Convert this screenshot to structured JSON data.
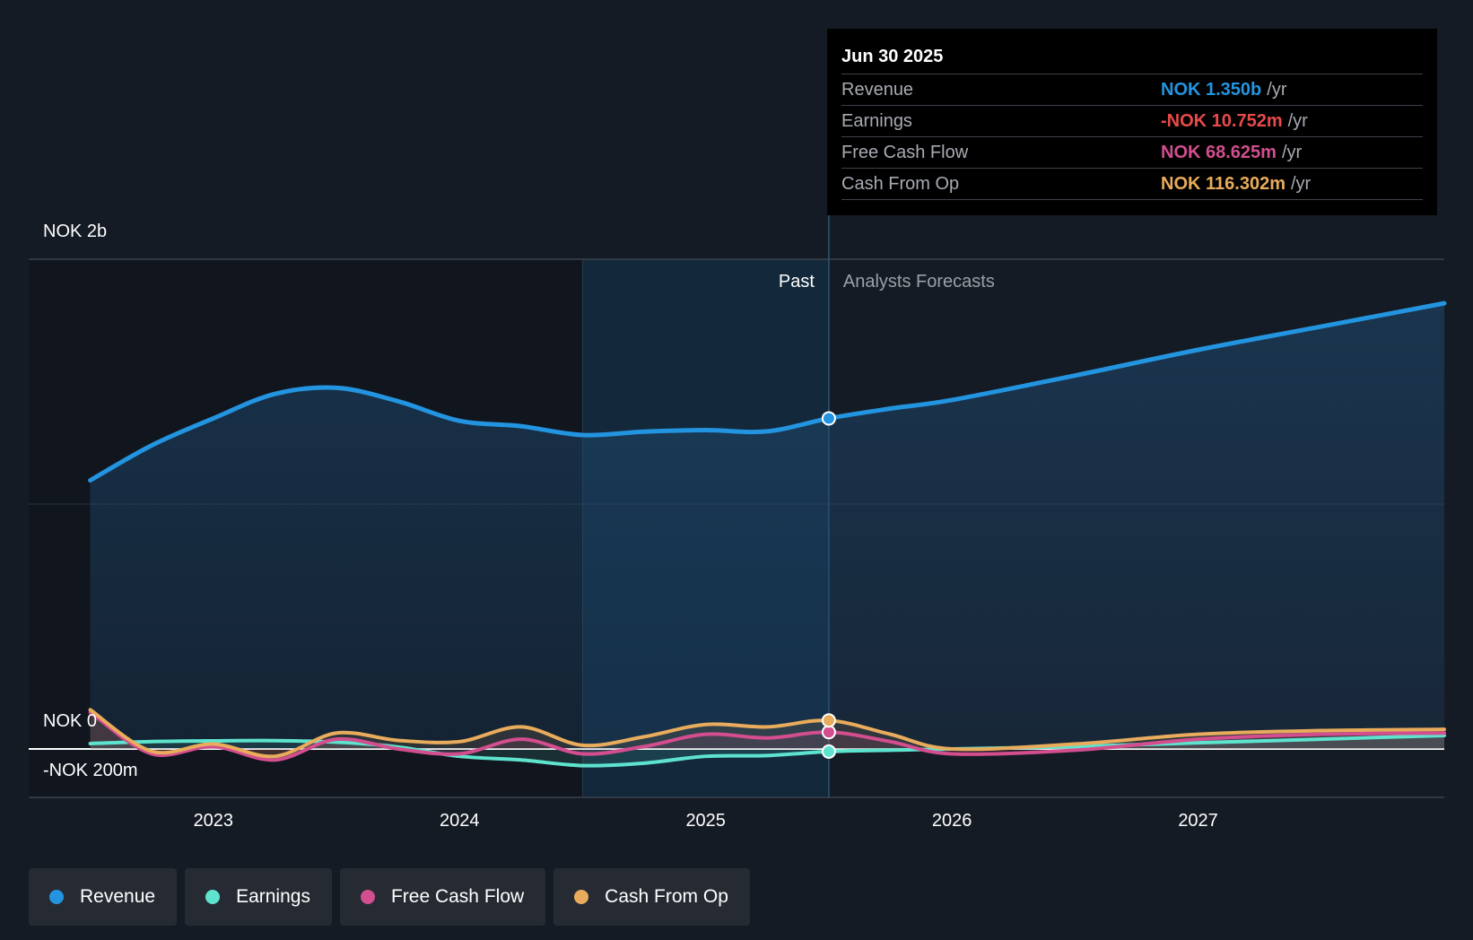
{
  "chart_data": {
    "type": "line",
    "title": "",
    "currency": "NOK",
    "y_unit": "million NOK",
    "ylim": [
      -200,
      2000
    ],
    "y_labels": [
      {
        "value": 2000,
        "text": "NOK 2b"
      },
      {
        "value": 0,
        "text": "NOK 0"
      },
      {
        "value": -200,
        "text": "-NOK 200m"
      }
    ],
    "x_ticks": [
      {
        "value": 2023,
        "text": "2023"
      },
      {
        "value": 2024,
        "text": "2024"
      },
      {
        "value": 2025,
        "text": "2025"
      },
      {
        "value": 2026,
        "text": "2026"
      },
      {
        "value": 2027,
        "text": "2027"
      }
    ],
    "xlim": [
      2022.25,
      2028.0
    ],
    "past_label": "Past",
    "forecast_label": "Analysts Forecasts",
    "divider_x": 2025.5,
    "shaded_start_x": 2024.5,
    "series": [
      {
        "name": "Revenue",
        "color": "#2394e0",
        "points": [
          [
            2022.5,
            1097
          ],
          [
            2022.75,
            1240
          ],
          [
            2023.0,
            1350
          ],
          [
            2023.25,
            1450
          ],
          [
            2023.5,
            1475
          ],
          [
            2023.75,
            1420
          ],
          [
            2024.0,
            1340
          ],
          [
            2024.25,
            1318
          ],
          [
            2024.5,
            1282
          ],
          [
            2024.75,
            1296
          ],
          [
            2025.0,
            1302
          ],
          [
            2025.25,
            1297
          ],
          [
            2025.5,
            1350
          ],
          [
            2025.75,
            1390
          ],
          [
            2026.0,
            1425
          ],
          [
            2026.5,
            1525
          ],
          [
            2027.0,
            1630
          ],
          [
            2027.5,
            1725
          ],
          [
            2028.0,
            1820
          ]
        ]
      },
      {
        "name": "Earnings",
        "color": "#5ee3ce",
        "points": [
          [
            2022.5,
            22
          ],
          [
            2022.75,
            30
          ],
          [
            2023.0,
            33
          ],
          [
            2023.25,
            34
          ],
          [
            2023.5,
            28
          ],
          [
            2023.75,
            8
          ],
          [
            2024.0,
            -30
          ],
          [
            2024.25,
            -45
          ],
          [
            2024.5,
            -68
          ],
          [
            2024.75,
            -58
          ],
          [
            2025.0,
            -30
          ],
          [
            2025.25,
            -27
          ],
          [
            2025.5,
            -10.752
          ],
          [
            2025.75,
            -5
          ],
          [
            2026.0,
            0
          ],
          [
            2026.5,
            10
          ],
          [
            2027.0,
            25
          ],
          [
            2027.5,
            40
          ],
          [
            2028.0,
            55
          ]
        ]
      },
      {
        "name": "Free Cash Flow",
        "color": "#d24e8e",
        "points": [
          [
            2022.5,
            150
          ],
          [
            2022.75,
            -20
          ],
          [
            2023.0,
            10
          ],
          [
            2023.25,
            -45
          ],
          [
            2023.5,
            40
          ],
          [
            2023.75,
            0
          ],
          [
            2024.0,
            -20
          ],
          [
            2024.25,
            40
          ],
          [
            2024.5,
            -20
          ],
          [
            2024.75,
            10
          ],
          [
            2025.0,
            60
          ],
          [
            2025.25,
            45
          ],
          [
            2025.5,
            68.625
          ],
          [
            2025.75,
            30
          ],
          [
            2026.0,
            -20
          ],
          [
            2026.5,
            -5
          ],
          [
            2027.0,
            40
          ],
          [
            2027.5,
            60
          ],
          [
            2028.0,
            65
          ]
        ]
      },
      {
        "name": "Cash From Op",
        "color": "#e8ac5c",
        "points": [
          [
            2022.5,
            160
          ],
          [
            2022.75,
            -10
          ],
          [
            2023.0,
            20
          ],
          [
            2023.25,
            -30
          ],
          [
            2023.5,
            65
          ],
          [
            2023.75,
            35
          ],
          [
            2024.0,
            30
          ],
          [
            2024.25,
            90
          ],
          [
            2024.5,
            15
          ],
          [
            2024.75,
            50
          ],
          [
            2025.0,
            100
          ],
          [
            2025.25,
            90
          ],
          [
            2025.5,
            116.302
          ],
          [
            2025.75,
            60
          ],
          [
            2026.0,
            0
          ],
          [
            2026.5,
            20
          ],
          [
            2027.0,
            60
          ],
          [
            2027.5,
            75
          ],
          [
            2028.0,
            80
          ]
        ]
      }
    ]
  },
  "tooltip": {
    "date": "Jun 30 2025",
    "rows": [
      {
        "label": "Revenue",
        "value": "NOK 1.350b",
        "unit": "/yr",
        "color": "#2394e0"
      },
      {
        "label": "Earnings",
        "value": "-NOK 10.752m",
        "unit": "/yr",
        "color": "#e84a4a"
      },
      {
        "label": "Free Cash Flow",
        "value": "NOK 68.625m",
        "unit": "/yr",
        "color": "#d24e8e"
      },
      {
        "label": "Cash From Op",
        "value": "NOK 116.302m",
        "unit": "/yr",
        "color": "#e8ac5c"
      }
    ]
  },
  "legend": [
    {
      "label": "Revenue",
      "color": "#2394e0"
    },
    {
      "label": "Earnings",
      "color": "#5ee3ce"
    },
    {
      "label": "Free Cash Flow",
      "color": "#d24e8e"
    },
    {
      "label": "Cash From Op",
      "color": "#e8ac5c"
    }
  ]
}
